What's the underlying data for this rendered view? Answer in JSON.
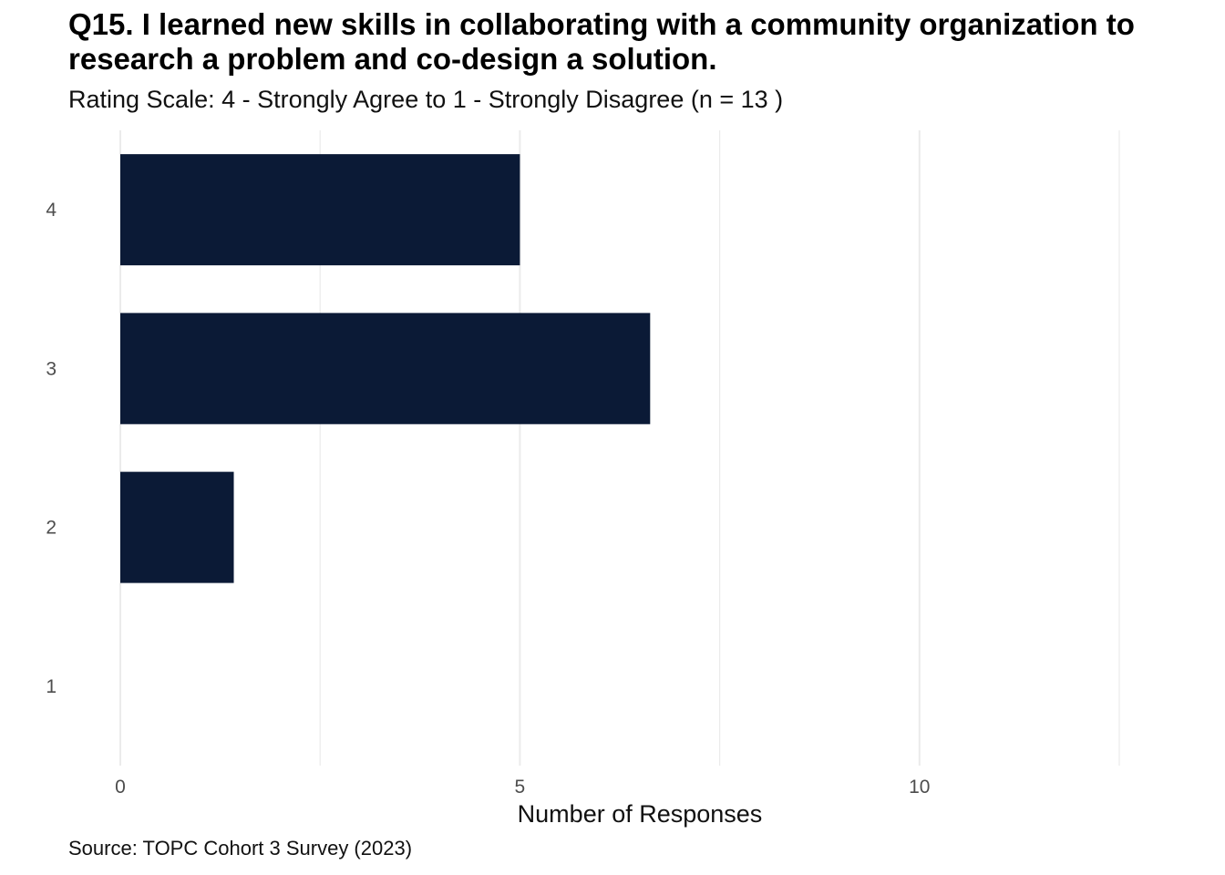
{
  "chart_data": {
    "type": "bar",
    "orientation": "horizontal",
    "title": "Q15. I learned new skills in collaborating with a community organization to research a problem and co-design a solution.",
    "subtitle": "Rating Scale: 4 - Strongly Agree to 1 - Strongly Disagree (n = 13 )",
    "caption": "Source: TOPC Cohort 3 Survey (2023)",
    "xlabel": "Number of Responses",
    "ylabel": "",
    "categories": [
      "4",
      "3",
      "2",
      "1"
    ],
    "values": [
      5,
      6.63,
      1.42,
      0
    ],
    "xlim": [
      0,
      12.5
    ],
    "xticks": [
      "0",
      "5",
      "10"
    ],
    "xtick_values": [
      0,
      5,
      10
    ],
    "grid": true,
    "legend": "none",
    "bar_color": "#0b1a36"
  }
}
